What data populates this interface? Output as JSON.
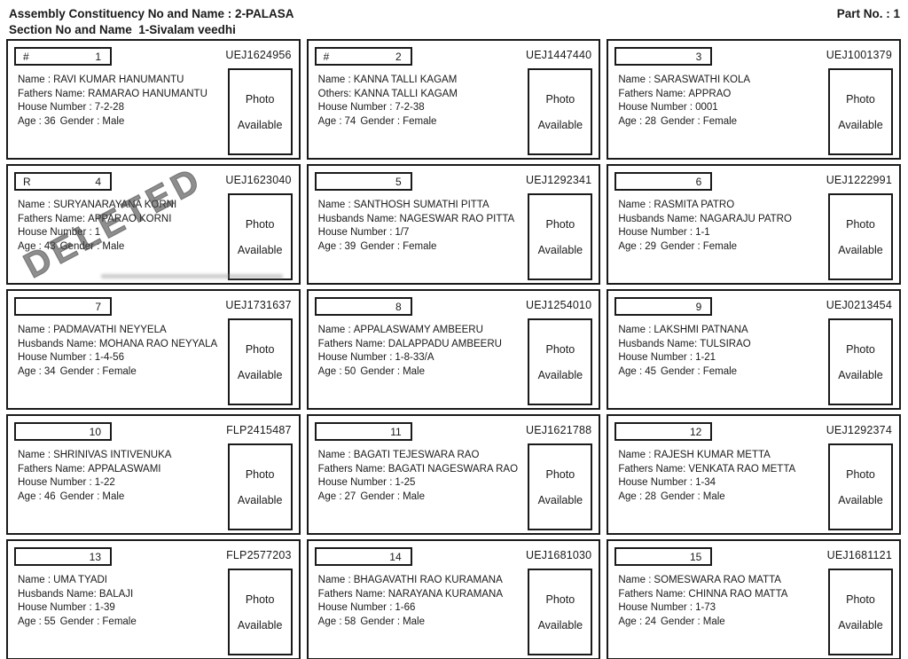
{
  "header": {
    "line1": "Assembly Constituency No and Name : 2-PALASA",
    "line2": "Section No and Name  1-Sivalam veedhi",
    "part_no": "Part No. : 1"
  },
  "labels": {
    "name": "Name :",
    "house": "House Number :",
    "age": "Age :",
    "gender": "Gender :",
    "photo_word": "Photo",
    "available_word": "Available",
    "deleted_stamp": "DELETED"
  },
  "voters": [
    {
      "prefix": "#",
      "serial": "1",
      "epic": "UEJ1624956",
      "name": "RAVI KUMAR HANUMANTU",
      "relation_label": "Fathers Name:",
      "relation_name": "RAMARAO HANUMANTU",
      "house_number": "7-2-28",
      "age": "36",
      "gender": "Male",
      "deleted": false
    },
    {
      "prefix": "#",
      "serial": "2",
      "epic": "UEJ1447440",
      "name": "KANNA TALLI KAGAM",
      "relation_label": "Others:",
      "relation_name": "KANNA TALLI KAGAM",
      "house_number": "7-2-38",
      "age": "74",
      "gender": "Female",
      "deleted": false
    },
    {
      "prefix": "",
      "serial": "3",
      "epic": "UEJ1001379",
      "name": "SARASWATHI KOLA",
      "relation_label": "Fathers Name:",
      "relation_name": "APPRAO",
      "house_number": "0001",
      "age": "28",
      "gender": "Female",
      "deleted": false
    },
    {
      "prefix": "R",
      "serial": "4",
      "epic": "UEJ1623040",
      "name": "SURYANARAYANA KORNI",
      "relation_label": "Fathers Name:",
      "relation_name": "APPARAO KORNI",
      "house_number": "1",
      "age": "43",
      "gender": "Male",
      "deleted": true
    },
    {
      "prefix": "",
      "serial": "5",
      "epic": "UEJ1292341",
      "name": "SANTHOSH SUMATHI PITTA",
      "relation_label": "Husbands Name:",
      "relation_name": "NAGESWAR RAO PITTA",
      "house_number": "1/7",
      "age": "39",
      "gender": "Female",
      "deleted": false
    },
    {
      "prefix": "",
      "serial": "6",
      "epic": "UEJ1222991",
      "name": "RASMITA PATRO",
      "relation_label": "Husbands Name:",
      "relation_name": "NAGARAJU PATRO",
      "house_number": "1-1",
      "age": "29",
      "gender": "Female",
      "deleted": false
    },
    {
      "prefix": "",
      "serial": "7",
      "epic": "UEJ1731637",
      "name": "PADMAVATHI NEYYELA",
      "relation_label": "Husbands Name:",
      "relation_name": "MOHANA RAO NEYYALA",
      "house_number": "1-4-56",
      "age": "34",
      "gender": "Female",
      "deleted": false
    },
    {
      "prefix": "",
      "serial": "8",
      "epic": "UEJ1254010",
      "name": "APPALASWAMY AMBEERU",
      "relation_label": "Fathers Name:",
      "relation_name": "DALAPPADU AMBEERU",
      "house_number": "1-8-33/A",
      "age": "50",
      "gender": "Male",
      "deleted": false
    },
    {
      "prefix": "",
      "serial": "9",
      "epic": "UEJ0213454",
      "name": "LAKSHMI PATNANA",
      "relation_label": "Husbands Name:",
      "relation_name": "TULSIRAO",
      "house_number": "1-21",
      "age": "45",
      "gender": "Female",
      "deleted": false
    },
    {
      "prefix": "",
      "serial": "10",
      "epic": "FLP2415487",
      "name": "SHRINIVAS INTIVENUKA",
      "relation_label": "Fathers Name:",
      "relation_name": "APPALASWAMI",
      "house_number": "1-22",
      "age": "46",
      "gender": "Male",
      "deleted": false
    },
    {
      "prefix": "",
      "serial": "11",
      "epic": "UEJ1621788",
      "name": "BAGATI TEJESWARA RAO",
      "relation_label": "Fathers Name:",
      "relation_name": "BAGATI NAGESWARA RAO",
      "house_number": "1-25",
      "age": "27",
      "gender": "Male",
      "deleted": false
    },
    {
      "prefix": "",
      "serial": "12",
      "epic": "UEJ1292374",
      "name": "RAJESH KUMAR METTA",
      "relation_label": "Fathers Name:",
      "relation_name": "VENKATA RAO METTA",
      "house_number": "1-34",
      "age": "28",
      "gender": "Male",
      "deleted": false
    },
    {
      "prefix": "",
      "serial": "13",
      "epic": "FLP2577203",
      "name": "UMA TYADI",
      "relation_label": "Husbands Name:",
      "relation_name": "BALAJI",
      "house_number": "1-39",
      "age": "55",
      "gender": "Female",
      "deleted": false
    },
    {
      "prefix": "",
      "serial": "14",
      "epic": "UEJ1681030",
      "name": "BHAGAVATHI RAO KURAMANA",
      "relation_label": "Fathers Name:",
      "relation_name": "NARAYANA KURAMANA",
      "house_number": "1-66",
      "age": "58",
      "gender": "Male",
      "deleted": false
    },
    {
      "prefix": "",
      "serial": "15",
      "epic": "UEJ1681121",
      "name": "SOMESWARA RAO MATTA",
      "relation_label": "Fathers Name:",
      "relation_name": "CHINNA RAO MATTA",
      "house_number": "1-73",
      "age": "24",
      "gender": "Male",
      "deleted": false
    }
  ]
}
